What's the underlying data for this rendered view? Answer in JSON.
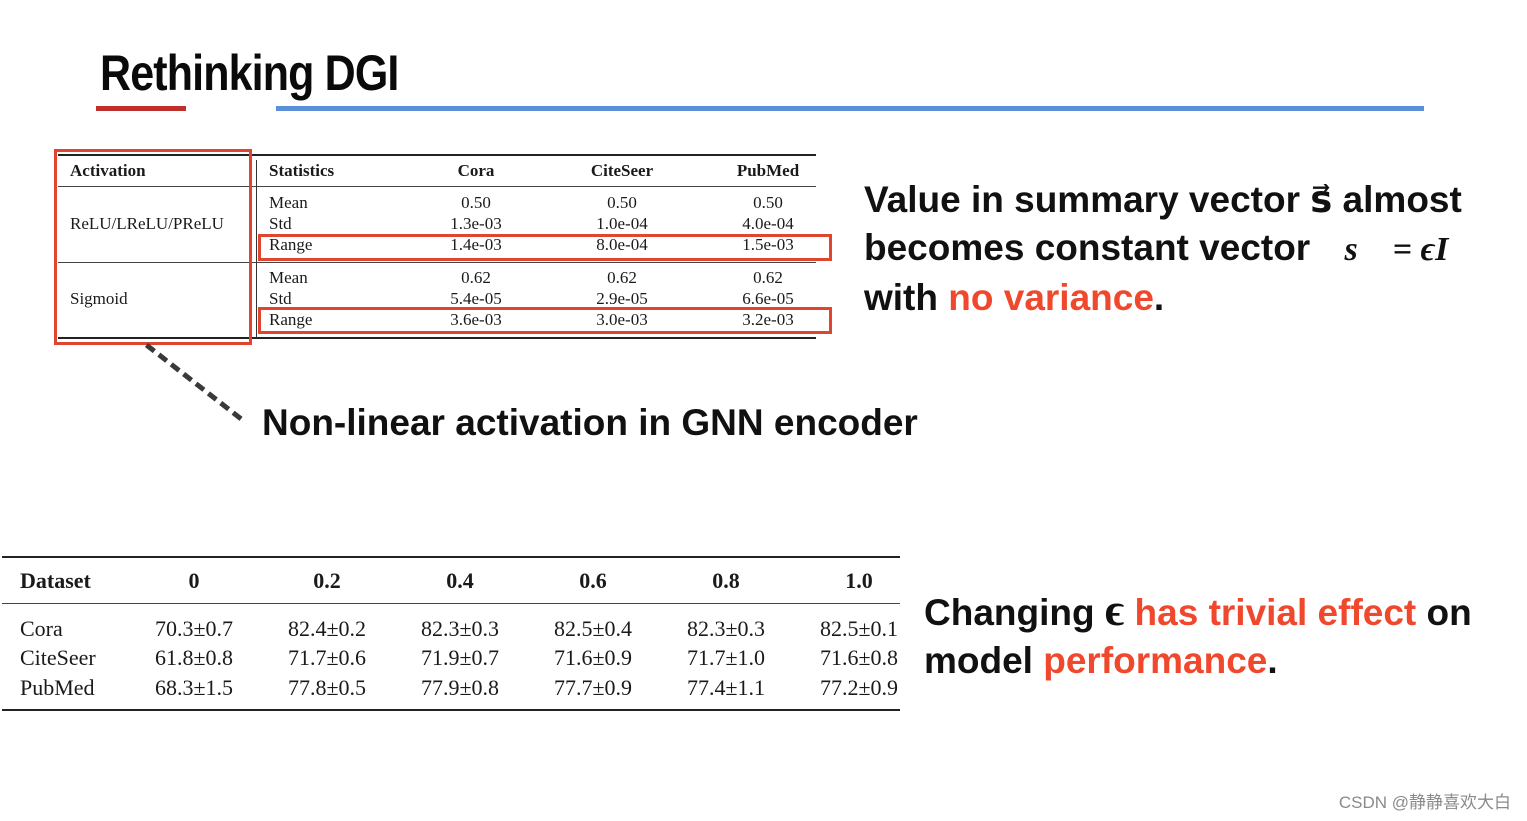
{
  "title": "Rethinking DGI",
  "table1": {
    "headers": [
      "Activation",
      "Statistics",
      "Cora",
      "CiteSeer",
      "PubMed"
    ],
    "groups": [
      {
        "activation": "ReLU/LReLU/PReLU",
        "rows": [
          {
            "stat": "Mean",
            "cora": "0.50",
            "citeseer": "0.50",
            "pubmed": "0.50"
          },
          {
            "stat": "Std",
            "cora": "1.3e-03",
            "citeseer": "1.0e-04",
            "pubmed": "4.0e-04"
          },
          {
            "stat": "Range",
            "cora": "1.4e-03",
            "citeseer": "8.0e-04",
            "pubmed": "1.5e-03"
          }
        ]
      },
      {
        "activation": "Sigmoid",
        "rows": [
          {
            "stat": "Mean",
            "cora": "0.62",
            "citeseer": "0.62",
            "pubmed": "0.62"
          },
          {
            "stat": "Std",
            "cora": "5.4e-05",
            "citeseer": "2.9e-05",
            "pubmed": "6.6e-05"
          },
          {
            "stat": "Range",
            "cora": "3.6e-03",
            "citeseer": "3.0e-03",
            "pubmed": "3.2e-03"
          }
        ]
      }
    ]
  },
  "callout1": {
    "line1": "Value in summary vector s⃗ almost",
    "line2": "becomes constant vector",
    "math": "s⃗ = ϵI",
    "line3_pre": "with ",
    "line3_accent": "no variance",
    "line3_post": "."
  },
  "callout2": "Non-linear activation in GNN encoder",
  "table2": {
    "headers": [
      "Dataset",
      "0",
      "0.2",
      "0.4",
      "0.6",
      "0.8",
      "1.0"
    ],
    "rows": [
      {
        "dataset": "Cora",
        "values": [
          "70.3±0.7",
          "82.4±0.2",
          "82.3±0.3",
          "82.5±0.4",
          "82.3±0.3",
          "82.5±0.1"
        ]
      },
      {
        "dataset": "CiteSeer",
        "values": [
          "61.8±0.8",
          "71.7±0.6",
          "71.9±0.7",
          "71.6±0.9",
          "71.7±1.0",
          "71.6±0.8"
        ]
      },
      {
        "dataset": "PubMed",
        "values": [
          "68.3±1.5",
          "77.8±0.5",
          "77.9±0.8",
          "77.7±0.9",
          "77.4±1.1",
          "77.2±0.9"
        ]
      }
    ]
  },
  "callout3": {
    "w1": "Changing ",
    "symbol": "ϵ",
    "accent1": " has trivial effect",
    "w2": " on",
    "w3": "model ",
    "accent2": "performance",
    "w4": "."
  },
  "watermark": "CSDN @静静喜欢大白",
  "colors": {
    "accent": "#f0482d",
    "title_red": "#c0302a",
    "title_blue": "#5b8fd8"
  }
}
